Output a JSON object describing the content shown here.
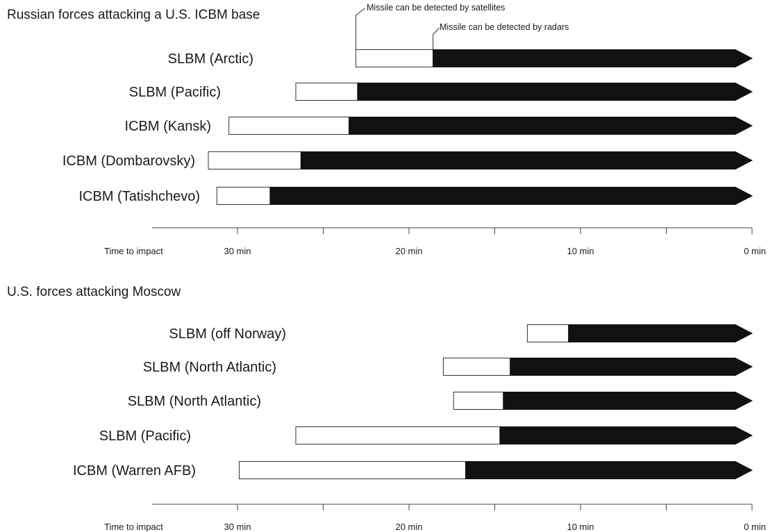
{
  "chart_data": [
    {
      "type": "bar",
      "title": "Russian forces attacking a U.S. ICBM base",
      "xlabel": "Time to impact",
      "xlim": [
        35,
        0
      ],
      "ticks": [
        30,
        25,
        20,
        15,
        10,
        5,
        0
      ],
      "tick_labels": [
        {
          "value": 30,
          "label": "30 min"
        },
        {
          "value": 20,
          "label": "20 min"
        },
        {
          "value": 10,
          "label": "10 min"
        },
        {
          "value": 0,
          "label": "0 min"
        }
      ],
      "annotations": [
        {
          "text": "Missile can be detected by satellites",
          "row": 0,
          "at": "satellite"
        },
        {
          "text": "Missile can be detected by radars",
          "row": 0,
          "at": "radar"
        }
      ],
      "series": [
        {
          "name": "Missile can be detected by satellites",
          "color": "#ffffff"
        },
        {
          "name": "Missile can be detected by radars",
          "color": "#111111"
        }
      ],
      "categories": [
        "SLBM (Arctic)",
        "SLBM (Pacific)",
        "ICBM (Kansk)",
        "ICBM (Dombarovsky)",
        "ICBM (Tatishchevo)"
      ],
      "launch": [
        23.1,
        26.6,
        30.5,
        31.7,
        31.2
      ],
      "radar_detection": [
        18.6,
        23.0,
        23.5,
        26.3,
        28.1
      ],
      "impact": [
        0,
        0,
        0,
        0,
        0
      ]
    },
    {
      "type": "bar",
      "title": "U.S. forces attacking Moscow",
      "xlabel": "Time to impact",
      "xlim": [
        35,
        0
      ],
      "ticks": [
        30,
        25,
        20,
        15,
        10,
        5,
        0
      ],
      "tick_labels": [
        {
          "value": 30,
          "label": "30 min"
        },
        {
          "value": 20,
          "label": "20 min"
        },
        {
          "value": 10,
          "label": "10 min"
        },
        {
          "value": 0,
          "label": "0 min"
        }
      ],
      "categories": [
        "SLBM (off Norway)",
        "SLBM (North Atlantic)",
        "SLBM (North Atlantic)",
        "SLBM (Pacific)",
        "ICBM (Warren AFB)"
      ],
      "launch": [
        13.1,
        18.0,
        17.4,
        26.6,
        29.9
      ],
      "radar_detection": [
        10.7,
        14.1,
        14.5,
        14.7,
        16.7
      ],
      "impact": [
        0,
        0,
        0,
        0,
        0
      ]
    }
  ]
}
